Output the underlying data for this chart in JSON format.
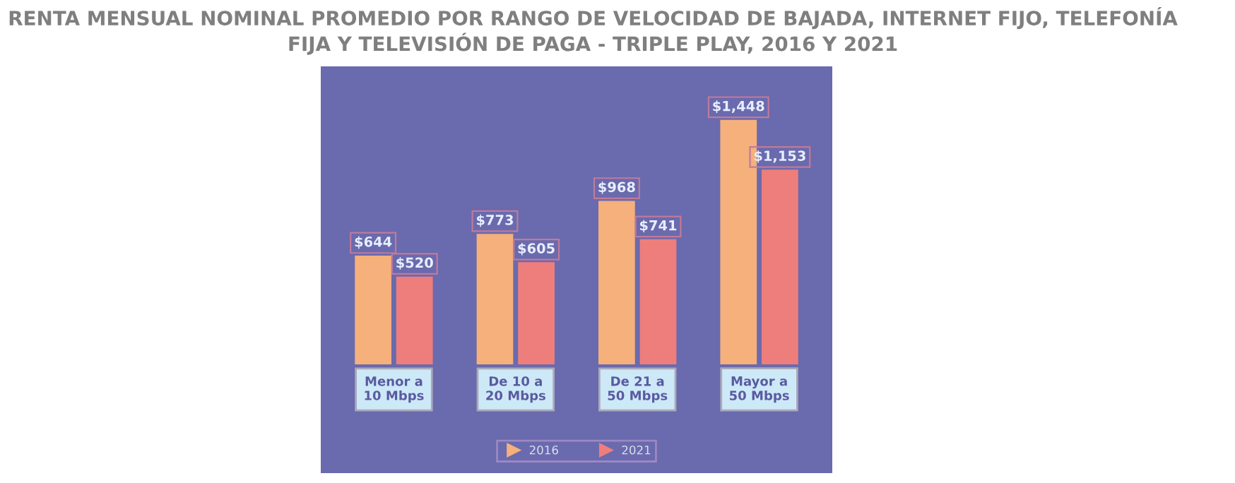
{
  "chart_data": {
    "type": "bar",
    "title": "RENTA MENSUAL NOMINAL PROMEDIO POR RANGO DE VELOCIDAD DE BAJADA, INTERNET FIJO, TELEFONÍA FIJA Y TELEVISIÓN DE PAGA - TRIPLE PLAY, 2016 Y 2021",
    "categories": [
      "Menor a\n10 Mbps",
      "De 10 a\n20 Mbps",
      "De 21 a\n50 Mbps",
      "Mayor a\n50 Mbps"
    ],
    "series": [
      {
        "name": "2016",
        "color": "#f5b07c",
        "values": [
          644,
          773,
          968,
          1448
        ],
        "value_labels": [
          "$644",
          "$773",
          "$968",
          "$1,448"
        ]
      },
      {
        "name": "2021",
        "color": "#ee7e7b",
        "values": [
          520,
          605,
          741,
          1153
        ],
        "value_labels": [
          "$520",
          "$605",
          "$741",
          "$1,153"
        ]
      }
    ],
    "legend": "bottom"
  }
}
